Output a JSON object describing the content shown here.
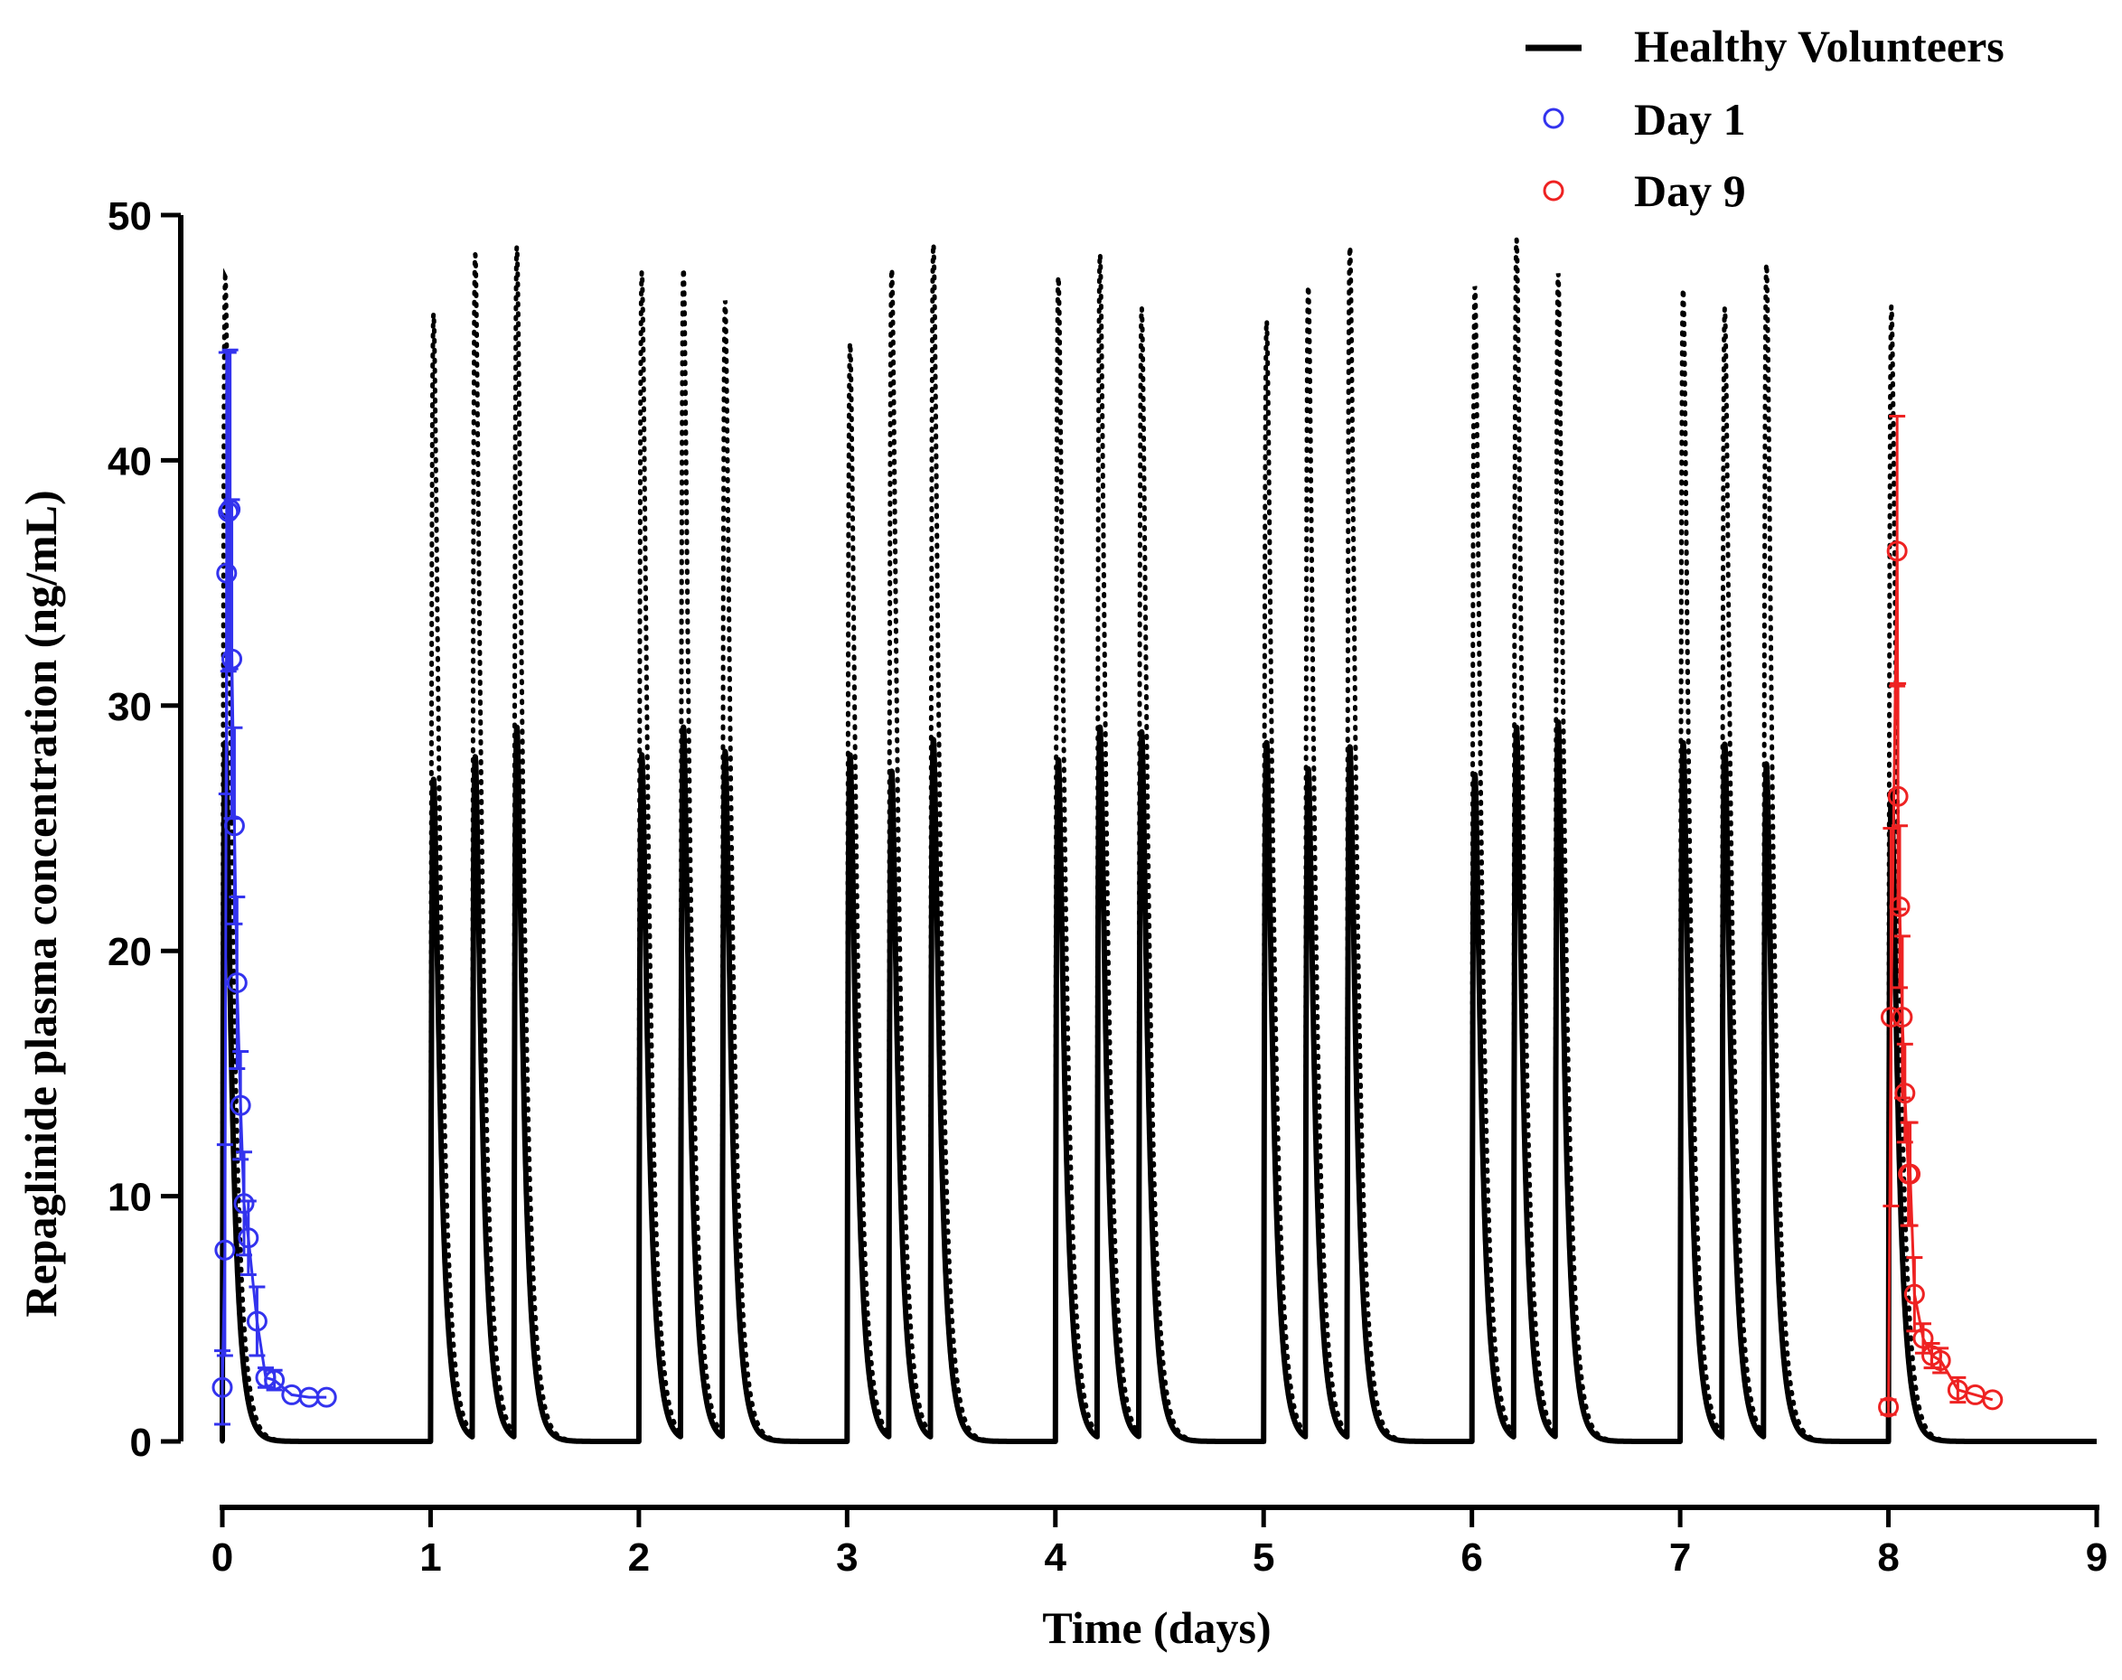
{
  "chart_data": {
    "type": "line",
    "title": "",
    "xlabel": "Time (days)",
    "ylabel": "Repaglinide plasma concentration (ng/mL)",
    "xlim": [
      0,
      9
    ],
    "ylim": [
      0,
      50
    ],
    "x_ticks": [
      0,
      1,
      2,
      3,
      4,
      5,
      6,
      7,
      8,
      9
    ],
    "y_ticks": [
      0,
      10,
      20,
      30,
      40,
      50
    ],
    "legend": {
      "position": "top-right",
      "entries": [
        {
          "label": "Healthy Volunteers",
          "style": "solid-line",
          "color": "#000000"
        },
        {
          "label": "Day 1",
          "style": "open-circle",
          "color": "#3333ee"
        },
        {
          "label": "Day 9",
          "style": "open-circle",
          "color": "#ee2222"
        }
      ]
    },
    "dose_times_days": [
      0,
      1,
      1.2,
      1.4,
      2,
      2.2,
      2.4,
      3,
      3.2,
      3.4,
      4,
      4.2,
      4.4,
      5,
      5.2,
      5.4,
      6,
      6.2,
      6.4,
      7,
      7.2,
      7.4,
      8
    ],
    "series": [
      {
        "name": "Healthy Volunteers (median)",
        "style": "solid",
        "peaks_ng_mL": [
          28.5,
          27.0,
          27.8,
          29.0,
          28.0,
          29.0,
          28.0,
          28.0,
          27.2,
          28.5,
          27.8,
          29.0,
          28.8,
          28.5,
          27.3,
          28.2,
          27.2,
          29.0,
          29.2,
          28.5,
          28.3,
          27.5,
          26.5
        ]
      },
      {
        "name": "Healthy Volunteers (upper percentile)",
        "style": "dotted",
        "peaks_ng_mL": [
          47.5,
          46.0,
          48.2,
          48.5,
          47.7,
          47.6,
          46.3,
          44.8,
          47.6,
          48.6,
          47.5,
          48.2,
          46.0,
          45.7,
          46.9,
          48.5,
          47.1,
          48.8,
          47.4,
          47.0,
          46.0,
          47.8,
          46.3
        ]
      },
      {
        "name": "Day 1",
        "marker": "circle",
        "color": "#3333ee",
        "x": [
          0.0,
          0.0125,
          0.0208,
          0.0292,
          0.0375,
          0.0458,
          0.0583,
          0.0708,
          0.0875,
          0.1042,
          0.125,
          0.1667,
          0.2083,
          0.25,
          0.3333,
          0.4167,
          0.5
        ],
        "y": [
          2.2,
          7.8,
          35.4,
          37.9,
          38.0,
          31.9,
          25.1,
          18.7,
          13.7,
          9.7,
          8.3,
          4.9,
          2.6,
          2.5,
          1.9,
          1.8,
          1.8
        ],
        "sd": [
          1.5,
          4.3,
          9.0,
          6.5,
          6.5,
          6.5,
          4.0,
          3.5,
          2.2,
          2.1,
          1.5,
          1.4,
          0.4,
          0.4,
          0.2,
          0.2,
          0.2
        ]
      },
      {
        "name": "Day 9",
        "marker": "circle",
        "color": "#ee2222",
        "x": [
          8.0,
          8.0125,
          8.0417,
          8.0458,
          8.0542,
          8.0667,
          8.0792,
          8.0958,
          8.1042,
          8.125,
          8.1667,
          8.2083,
          8.25,
          8.3333,
          8.4167,
          8.5
        ],
        "y": [
          1.4,
          17.3,
          36.3,
          26.3,
          21.8,
          17.3,
          14.2,
          10.9,
          10.9,
          6.0,
          4.2,
          3.5,
          3.3,
          2.1,
          1.9,
          1.7
        ],
        "sd": [
          0.3,
          7.7,
          5.5,
          4.6,
          3.3,
          3.3,
          2.0,
          2.1,
          2.1,
          1.5,
          0.6,
          0.5,
          0.5,
          0.5,
          0.2,
          0.2
        ]
      }
    ]
  }
}
